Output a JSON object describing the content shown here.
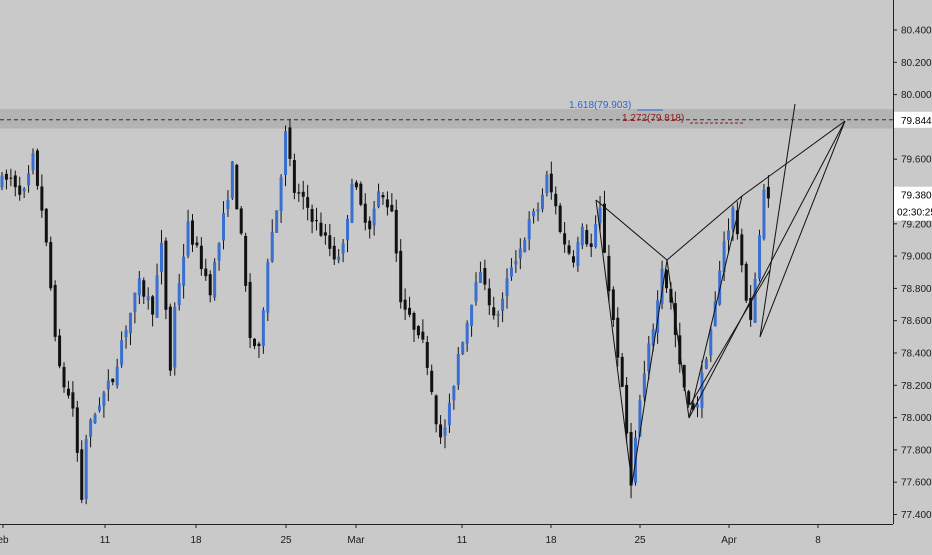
{
  "chart_data": {
    "type": "candlestick",
    "title": "",
    "x_tick_labels": [
      "eb",
      "11",
      "18",
      "25",
      "Mar",
      "11",
      "18",
      "25",
      "Apr",
      "8"
    ],
    "y_ticks": [
      "80.400",
      "80.200",
      "80.000",
      "79.600",
      "79.200",
      "79.000",
      "78.800",
      "78.600",
      "78.400",
      "78.200",
      "78.000",
      "77.800",
      "77.600",
      "77.400"
    ],
    "ylim": [
      77.3,
      80.6
    ],
    "grid": false,
    "resistance_zone": [
      79.79,
      79.91
    ],
    "dashed_level": 79.844,
    "current_price": 79.38,
    "price_badges": {
      "dashed": "79.844",
      "current": "79.380",
      "countdown": "02:30:25"
    },
    "fib_labels": {
      "ext_1618": "1.618(79.903)",
      "ext_1272": "1.272(79.818)"
    },
    "colors": {
      "background": "#c9c9c9",
      "up": "#3a6fd0",
      "down": "#111111",
      "fib_1618": "#2f66d4",
      "fib_1272": "#8b1a1a",
      "zone": "#b3b3b3"
    }
  }
}
